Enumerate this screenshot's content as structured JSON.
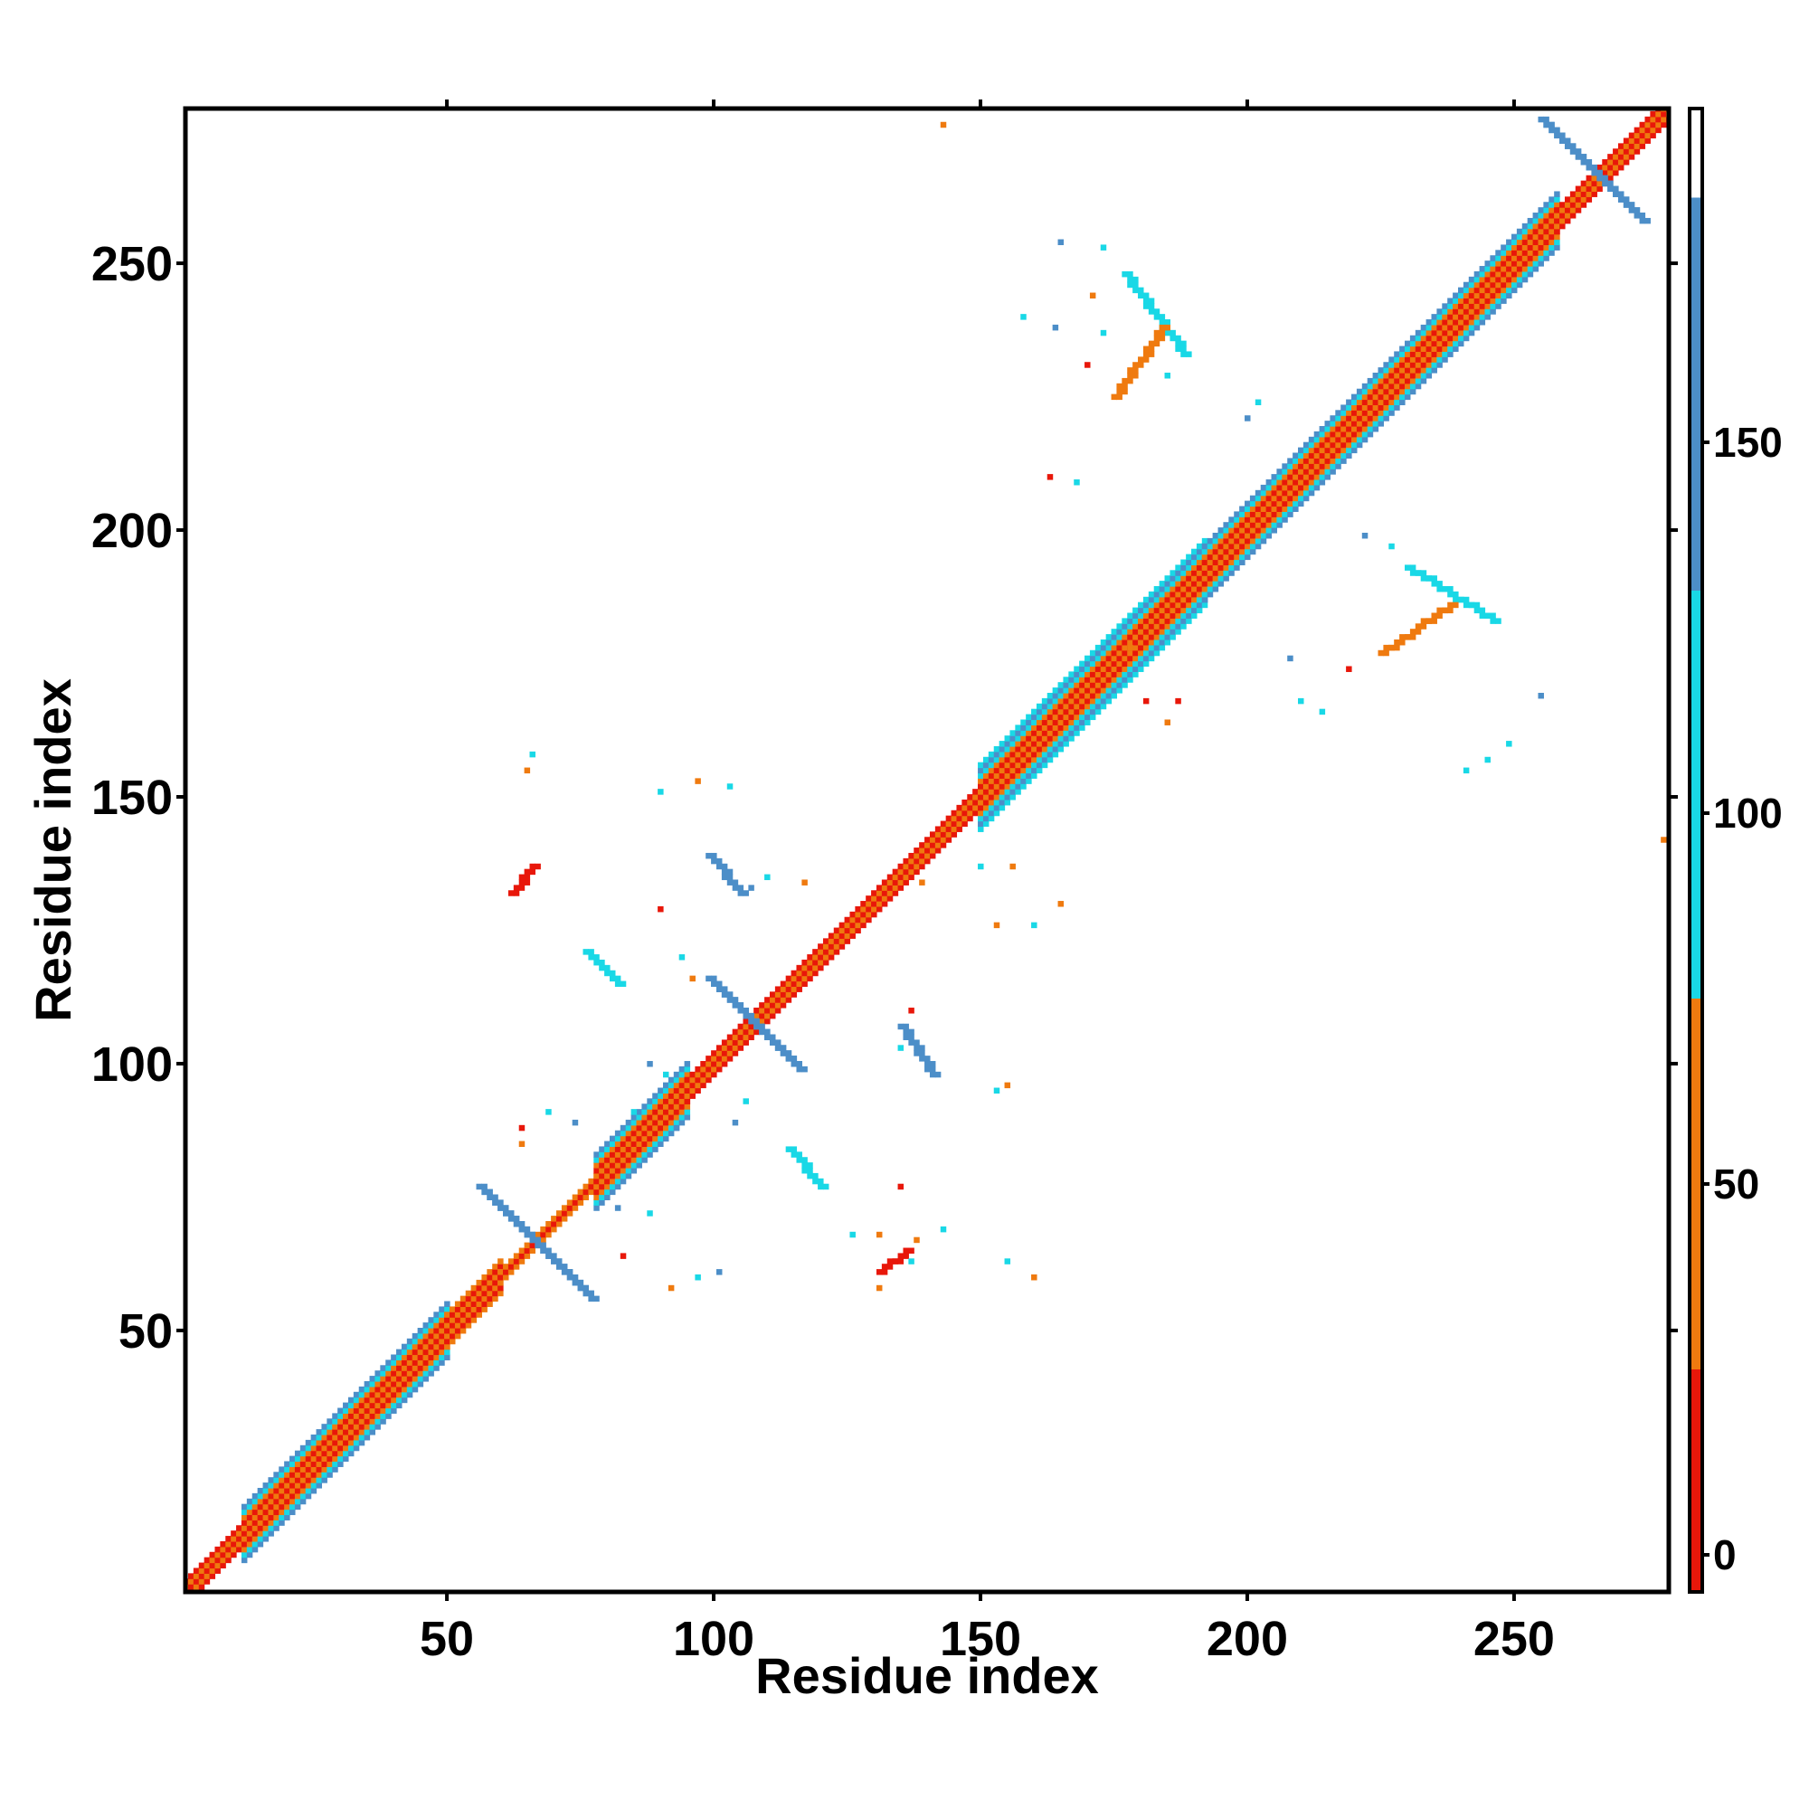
{
  "chart_data": {
    "type": "heatmap",
    "title": "",
    "xlabel": "Residue index",
    "ylabel": "Residue index",
    "xlim": [
      1,
      279
    ],
    "ylim": [
      1,
      279
    ],
    "x_ticks": [
      50,
      100,
      150,
      200,
      250
    ],
    "y_ticks": [
      50,
      100,
      150,
      200,
      250
    ],
    "grid": false,
    "colorbar": {
      "position": "right",
      "ticks": [
        0,
        50,
        100,
        150
      ],
      "range": [
        -5,
        195
      ],
      "bands": [
        {
          "from": -5,
          "to": 25,
          "color": "#e8170a"
        },
        {
          "from": 25,
          "to": 75,
          "color": "#ef7a0f"
        },
        {
          "from": 75,
          "to": 130,
          "color": "#19d8e6"
        },
        {
          "from": 130,
          "to": 183,
          "color": "#4c8ec8"
        },
        {
          "from": 183,
          "to": 195,
          "color": "#ffffff"
        }
      ]
    },
    "diagonal": {
      "x_range": [
        1,
        279
      ],
      "segments": [
        {
          "from": 1,
          "to": 12,
          "width": 2
        },
        {
          "from": 12,
          "to": 50,
          "width": 5
        },
        {
          "from": 50,
          "to": 60,
          "width": 3
        },
        {
          "from": 60,
          "to": 78,
          "width": 1
        },
        {
          "from": 78,
          "to": 95,
          "width": 5
        },
        {
          "from": 95,
          "to": 108,
          "width": 2
        },
        {
          "from": 108,
          "to": 150,
          "width": 2
        },
        {
          "from": 150,
          "to": 192,
          "width": 6
        },
        {
          "from": 192,
          "to": 258,
          "width": 5
        },
        {
          "from": 258,
          "to": 279,
          "width": 2
        }
      ]
    },
    "off_diagonal": [
      {
        "x1": 56,
        "y1": 77,
        "x2": 76,
        "y2": 57,
        "value": 145,
        "label": "cross-1a"
      },
      {
        "x1": 57,
        "y1": 76,
        "x2": 77,
        "y2": 56,
        "value": 145,
        "label": "cross-1b"
      },
      {
        "x1": 99,
        "y1": 116,
        "x2": 115,
        "y2": 100,
        "value": 145,
        "label": "cross-2a"
      },
      {
        "x1": 100,
        "y1": 115,
        "x2": 116,
        "y2": 99,
        "value": 145,
        "label": "cross-2b"
      },
      {
        "x1": 255,
        "y1": 277,
        "x2": 273,
        "y2": 259,
        "value": 145,
        "label": "cross-3a"
      },
      {
        "x1": 256,
        "y1": 276,
        "x2": 274,
        "y2": 258,
        "value": 145,
        "label": "cross-3b"
      },
      {
        "x1": 62,
        "y1": 132,
        "x2": 66,
        "y2": 137,
        "value": 5,
        "label": "red-1"
      },
      {
        "x1": 131,
        "y1": 61,
        "x2": 136,
        "y2": 65,
        "value": 5,
        "label": "red-2"
      },
      {
        "x1": 99,
        "y1": 139,
        "x2": 105,
        "y2": 132,
        "value": 145,
        "label": "blue-1"
      },
      {
        "x1": 135,
        "y1": 107,
        "x2": 141,
        "y2": 98,
        "value": 145,
        "label": "blue-2"
      },
      {
        "x1": 76,
        "y1": 121,
        "x2": 82,
        "y2": 115,
        "value": 110,
        "label": "cyan-1"
      },
      {
        "x1": 114,
        "y1": 84,
        "x2": 120,
        "y2": 77,
        "value": 110,
        "label": "cyan-2"
      },
      {
        "x1": 177,
        "y1": 248,
        "x2": 188,
        "y2": 233,
        "value": 110,
        "label": "tail-1"
      },
      {
        "x1": 230,
        "y1": 193,
        "x2": 246,
        "y2": 183,
        "value": 110,
        "label": "tail-2"
      },
      {
        "x1": 175,
        "y1": 225,
        "x2": 184,
        "y2": 238,
        "value": 45,
        "label": "orange-1"
      },
      {
        "x1": 225,
        "y1": 177,
        "x2": 238,
        "y2": 186,
        "value": 45,
        "label": "orange-2"
      }
    ],
    "scatter_points": [
      [
        143,
        276,
        45
      ],
      [
        278,
        142,
        45
      ],
      [
        170,
        231,
        5
      ],
      [
        171,
        244,
        45
      ],
      [
        163,
        210,
        5
      ],
      [
        168,
        209,
        110
      ],
      [
        158,
        240,
        110
      ],
      [
        164,
        238,
        145
      ],
      [
        173,
        237,
        110
      ],
      [
        185,
        229,
        110
      ],
      [
        165,
        254,
        145
      ],
      [
        173,
        253,
        110
      ],
      [
        200,
        221,
        145
      ],
      [
        202,
        224,
        110
      ],
      [
        219,
        174,
        5
      ],
      [
        210,
        168,
        110
      ],
      [
        214,
        166,
        110
      ],
      [
        227,
        197,
        110
      ],
      [
        222,
        199,
        145
      ],
      [
        241,
        155,
        110
      ],
      [
        245,
        157,
        110
      ],
      [
        249,
        160,
        110
      ],
      [
        255,
        169,
        145
      ],
      [
        208,
        176,
        145
      ],
      [
        131,
        58,
        45
      ],
      [
        137,
        63,
        110
      ],
      [
        135,
        77,
        5
      ],
      [
        143,
        69,
        110
      ],
      [
        160,
        60,
        45
      ],
      [
        155,
        63,
        110
      ],
      [
        153,
        126,
        45
      ],
      [
        160,
        126,
        110
      ],
      [
        165,
        130,
        45
      ],
      [
        181,
        168,
        5
      ],
      [
        185,
        164,
        45
      ],
      [
        178,
        178,
        45
      ],
      [
        187,
        168,
        5
      ],
      [
        66,
        158,
        110
      ],
      [
        65,
        155,
        45
      ],
      [
        88,
        100,
        145
      ],
      [
        91,
        98,
        110
      ],
      [
        93,
        88,
        145
      ],
      [
        85,
        91,
        110
      ],
      [
        64,
        88,
        5
      ],
      [
        69,
        91,
        110
      ],
      [
        74,
        89,
        145
      ],
      [
        64,
        85,
        45
      ],
      [
        82,
        73,
        145
      ],
      [
        88,
        72,
        110
      ],
      [
        83,
        64,
        5
      ],
      [
        92,
        58,
        45
      ],
      [
        97,
        60,
        110
      ],
      [
        101,
        61,
        145
      ],
      [
        126,
        68,
        110
      ],
      [
        131,
        68,
        45
      ],
      [
        138,
        67,
        45
      ],
      [
        106,
        93,
        110
      ],
      [
        104,
        89,
        145
      ],
      [
        94,
        120,
        110
      ],
      [
        96,
        116,
        45
      ],
      [
        97,
        153,
        45
      ],
      [
        90,
        151,
        110
      ],
      [
        103,
        152,
        110
      ],
      [
        117,
        134,
        45
      ],
      [
        110,
        135,
        110
      ],
      [
        90,
        129,
        5
      ],
      [
        107,
        133,
        145
      ],
      [
        139,
        134,
        45
      ],
      [
        150,
        137,
        110
      ],
      [
        156,
        137,
        45
      ],
      [
        153,
        95,
        110
      ],
      [
        155,
        96,
        45
      ],
      [
        137,
        110,
        5
      ],
      [
        135,
        103,
        110
      ]
    ]
  }
}
